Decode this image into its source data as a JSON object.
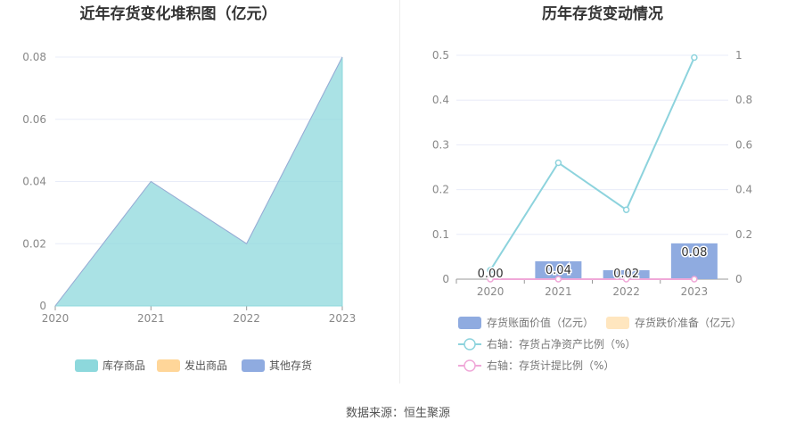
{
  "source_text": "数据来源：恒生聚源",
  "colors": {
    "teal": "#8dd8dc",
    "orange": "#ffd699",
    "blue": "#8fabe0",
    "line_teal": "#8dd3dd",
    "line_pink": "#f0a8d8",
    "grid": "#e8ecf8",
    "axis_text": "#888888",
    "title": "#333333"
  },
  "chart_data": [
    {
      "type": "area",
      "title": "近年存货变化堆积图（亿元）",
      "x": [
        "2020",
        "2021",
        "2022",
        "2023"
      ],
      "y_ticks": [
        "0",
        "0.02",
        "0.04",
        "0.06",
        "0.08"
      ],
      "ylim": [
        0,
        0.08
      ],
      "series": [
        {
          "name": "库存商品",
          "values": [
            0,
            0.04,
            0.02,
            0.08
          ],
          "color": "#8dd8dc"
        },
        {
          "name": "发出商品",
          "values": [
            0,
            0,
            0,
            0
          ],
          "color": "#ffd699"
        },
        {
          "name": "其他存货",
          "values": [
            0,
            0,
            0,
            0
          ],
          "color": "#8fabe0"
        }
      ],
      "legend": "bottom",
      "grid": true
    },
    {
      "type": "bar",
      "title": "历年存货变动情况",
      "categories": [
        "2020",
        "2021",
        "2022",
        "2023"
      ],
      "y_left_ticks": [
        "0",
        "0.1",
        "0.2",
        "0.3",
        "0.4",
        "0.5"
      ],
      "y_right_ticks": [
        "0",
        "0.2",
        "0.4",
        "0.6",
        "0.8",
        "1"
      ],
      "ylim_left": [
        0,
        0.5
      ],
      "ylim_right": [
        0,
        1
      ],
      "series": [
        {
          "name": "存货账面价值（亿元）",
          "kind": "bar",
          "axis": "left",
          "values": [
            0,
            0.04,
            0.02,
            0.08
          ],
          "labels": [
            "0.00",
            "0.04",
            "0.02",
            "0.08"
          ],
          "color": "#8fabe0"
        },
        {
          "name": "存货跌价准备（亿元）",
          "kind": "bar",
          "axis": "left",
          "values": [
            0,
            0,
            0,
            0
          ],
          "color": "#ffe6bf"
        },
        {
          "name": "右轴：存货占净资产比例（%）",
          "kind": "line",
          "axis": "right",
          "values": [
            0.04,
            0.52,
            0.31,
            0.99
          ],
          "color": "#8dd3dd"
        },
        {
          "name": "右轴：存货计提比例（%）",
          "kind": "line",
          "axis": "right",
          "values": [
            0,
            0,
            0,
            0
          ],
          "color": "#f0a8d8"
        }
      ],
      "legend": "bottom",
      "grid": true
    }
  ]
}
